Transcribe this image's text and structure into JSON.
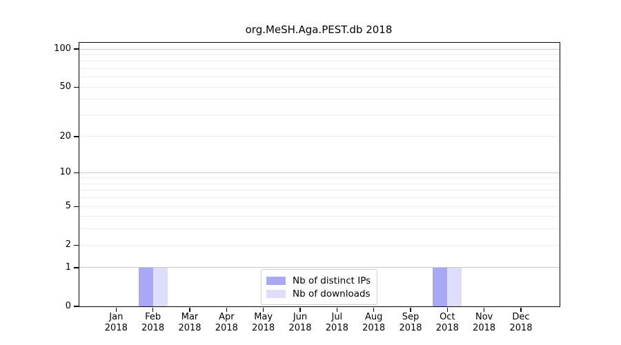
{
  "title": "org.MeSH.Aga.PEST.db 2018",
  "chart_data": {
    "type": "bar",
    "title": "org.MeSH.Aga.PEST.db 2018",
    "categories": [
      "Jan 2018",
      "Feb 2018",
      "Mar 2018",
      "Apr 2018",
      "May 2018",
      "Jun 2018",
      "Jul 2018",
      "Aug 2018",
      "Sep 2018",
      "Oct 2018",
      "Nov 2018",
      "Dec 2018"
    ],
    "series": [
      {
        "name": "Nb of distinct IPs",
        "color": "#a8a8f7",
        "values": [
          0,
          1,
          0,
          0,
          0,
          0,
          0,
          0,
          0,
          1,
          0,
          0
        ]
      },
      {
        "name": "Nb of downloads",
        "color": "#dedefa",
        "values": [
          0,
          1,
          0,
          0,
          0,
          0,
          0,
          0,
          0,
          1,
          0,
          0
        ]
      }
    ],
    "xlabel": "",
    "ylabel": "",
    "yscale": "log1p",
    "yticks": [
      0,
      1,
      2,
      5,
      10,
      20,
      50,
      100
    ],
    "ylim": [
      0,
      112
    ],
    "grid": "horizontal",
    "gridline_major_values": [
      1,
      10,
      100
    ],
    "gridline_minor_values": [
      2,
      3,
      4,
      5,
      6,
      7,
      8,
      9,
      20,
      30,
      40,
      50,
      60,
      70,
      80,
      90
    ],
    "legend_position": "lower center"
  }
}
